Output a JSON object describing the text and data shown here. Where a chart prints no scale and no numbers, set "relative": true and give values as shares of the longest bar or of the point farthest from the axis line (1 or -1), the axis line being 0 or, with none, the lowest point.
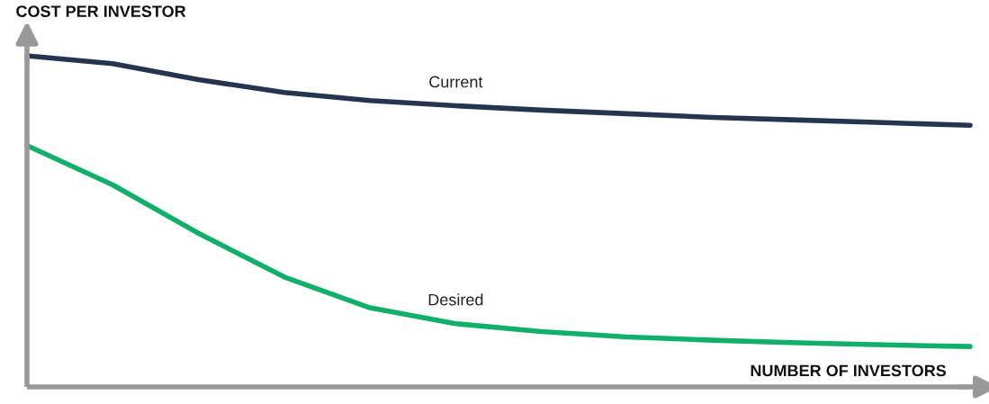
{
  "chart_data": {
    "type": "line",
    "relative": true,
    "xlabel": "NUMBER OF INVESTORS",
    "ylabel": "COST PER INVESTOR",
    "categories": [
      null,
      null,
      null,
      null,
      null,
      null,
      null,
      null,
      null,
      null,
      null,
      null
    ],
    "series": [
      {
        "name": "Current",
        "color": "#253550",
        "values": [
          1,
          0.976,
          0.928,
          0.889,
          0.865,
          0.849,
          0.836,
          0.825,
          0.814,
          0.806,
          0.798,
          0.79
        ]
      },
      {
        "name": "Desired",
        "color": "#10b06a",
        "values": [
          0.729,
          0.61,
          0.464,
          0.332,
          0.239,
          0.191,
          0.167,
          0.151,
          0.141,
          0.133,
          0.127,
          0.122
        ]
      }
    ],
    "legend": false,
    "marker": "none",
    "line_style": "solid",
    "tick_labels": false
  }
}
